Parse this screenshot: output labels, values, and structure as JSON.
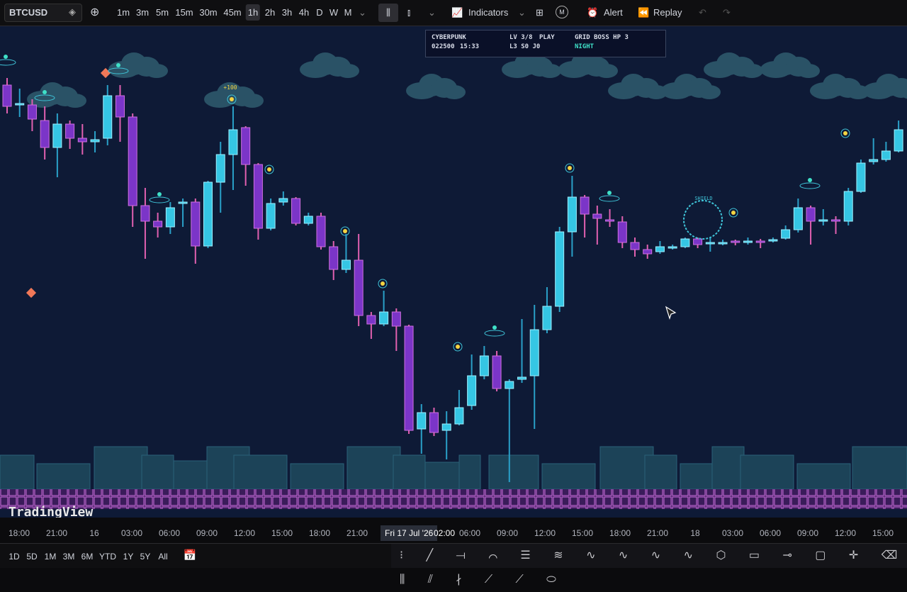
{
  "toolbar": {
    "symbol": "BTCUSD",
    "intervals": [
      "1m",
      "3m",
      "5m",
      "15m",
      "30m",
      "45m",
      "1h",
      "2h",
      "3h",
      "4h",
      "D",
      "W",
      "M"
    ],
    "active_interval": "1h",
    "indicators": "Indicators",
    "alert": "Alert",
    "replay": "Replay",
    "badge": "M"
  },
  "hud": {
    "game": "CYBERPUNK",
    "score": "022500",
    "clock": "15:33",
    "level": "LV 3/8",
    "state": "PLAY",
    "progress": "L3 S0 J0",
    "boss": "GRID BOSS HP 3",
    "mode": "NIGHT"
  },
  "overlay": {
    "bonus": "+100",
    "shield": "SHIELD"
  },
  "chart_data": {
    "type": "candlestick",
    "ylim": [
      0,
      700
    ],
    "open": [
      580,
      552,
      552,
      530,
      492,
      525,
      505,
      500,
      505,
      565,
      535,
      410,
      388,
      380,
      413,
      415,
      353,
      443,
      482,
      520,
      468,
      378,
      415,
      420,
      385,
      395,
      352,
      320,
      333,
      255,
      243,
      260,
      240,
      95,
      118,
      93,
      102,
      128,
      170,
      198,
      152,
      165,
      170,
      235,
      268,
      373,
      422,
      398,
      390,
      387,
      358,
      348,
      345,
      352,
      352,
      363,
      357,
      358,
      360,
      360,
      360,
      360,
      364,
      376,
      407,
      388,
      390,
      388,
      430,
      472,
      475,
      487
    ],
    "high": [
      590,
      575,
      560,
      550,
      540,
      530,
      525,
      515,
      580,
      580,
      540,
      435,
      400,
      415,
      420,
      420,
      445,
      500,
      550,
      522,
      470,
      420,
      430,
      422,
      400,
      400,
      360,
      370,
      370,
      260,
      290,
      265,
      242,
      130,
      125,
      120,
      150,
      200,
      212,
      205,
      165,
      250,
      270,
      295,
      380,
      452,
      425,
      410,
      405,
      395,
      365,
      355,
      360,
      355,
      365,
      365,
      365,
      362,
      362,
      365,
      363,
      365,
      382,
      420,
      410,
      405,
      395,
      435,
      475,
      505,
      500,
      530
    ],
    "low": [
      540,
      535,
      515,
      475,
      450,
      490,
      482,
      485,
      495,
      500,
      380,
      335,
      365,
      370,
      380,
      328,
      350,
      400,
      432,
      438,
      362,
      375,
      410,
      382,
      382,
      348,
      305,
      315,
      240,
      222,
      240,
      205,
      88,
      60,
      85,
      52,
      100,
      122,
      165,
      148,
      20,
      160,
      95,
      230,
      260,
      338,
      365,
      355,
      380,
      350,
      338,
      335,
      342,
      348,
      350,
      350,
      345,
      354,
      354,
      355,
      350,
      358,
      362,
      372,
      355,
      382,
      370,
      382,
      428,
      468,
      472,
      485
    ],
    "close": [
      550,
      554,
      532,
      492,
      525,
      505,
      500,
      503,
      565,
      535,
      410,
      388,
      380,
      407,
      415,
      353,
      443,
      482,
      517,
      468,
      378,
      413,
      420,
      385,
      395,
      352,
      320,
      333,
      255,
      243,
      260,
      240,
      93,
      118,
      90,
      102,
      125,
      170,
      198,
      152,
      162,
      168,
      235,
      268,
      373,
      422,
      398,
      392,
      388,
      358,
      348,
      342,
      352,
      352,
      363,
      355,
      358,
      358,
      359,
      360,
      358,
      362,
      376,
      407,
      388,
      390,
      388,
      430,
      470,
      475,
      487,
      517
    ]
  },
  "time_axis": {
    "labels": [
      "18:00",
      "21:00",
      "16",
      "03:00",
      "06:00",
      "09:00",
      "12:00",
      "15:00",
      "18:00",
      "21:00",
      "06:00",
      "09:00",
      "12:00",
      "15:00",
      "18:00",
      "21:00",
      "18",
      "03:00",
      "06:00",
      "09:00",
      "12:00",
      "15:00"
    ],
    "cursor_date": "Fri 17 Jul '26",
    "cursor_time": "02:00"
  },
  "watermark": "TradingView",
  "ranges": [
    "1D",
    "5D",
    "1M",
    "3M",
    "6M",
    "YTD",
    "1Y",
    "5Y",
    "All"
  ]
}
